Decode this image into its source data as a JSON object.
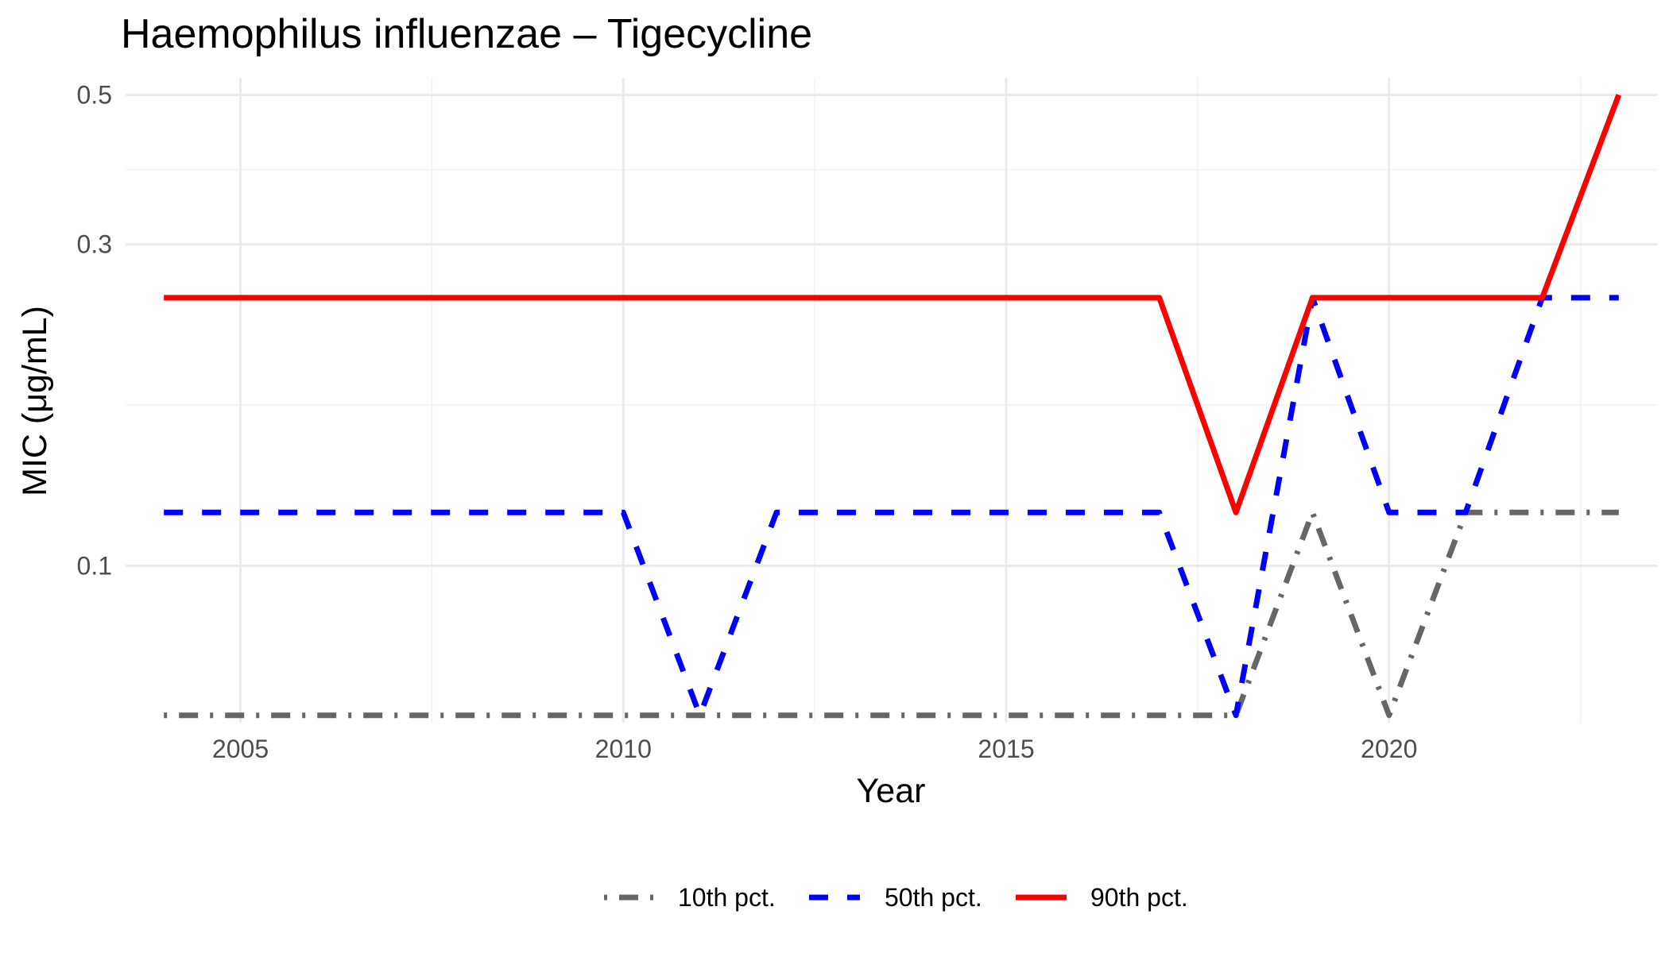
{
  "chart_data": {
    "type": "line",
    "title": "Haemophilus influenzae – Tigecycline",
    "xlabel": "Year",
    "ylabel": "MIC (μg/mL)",
    "y_scale": "log10",
    "xlim": [
      2003.5,
      2023.5
    ],
    "ylim": [
      0.0585,
      0.53
    ],
    "x_ticks": [
      2005,
      2010,
      2015,
      2020
    ],
    "x_tick_labels": [
      "2005",
      "2010",
      "2015",
      "2020"
    ],
    "y_ticks": [
      0.1,
      0.3,
      0.5
    ],
    "y_tick_labels": [
      "0.1",
      "0.3",
      "0.5"
    ],
    "grid": true,
    "legend_position": "bottom",
    "series": [
      {
        "name": "10th pct.",
        "color": "#666666",
        "line_style": "dotdash",
        "x": [
          2004,
          2005,
          2006,
          2007,
          2008,
          2009,
          2010,
          2011,
          2012,
          2013,
          2014,
          2015,
          2016,
          2017,
          2018,
          2019,
          2020,
          2021,
          2022,
          2023
        ],
        "values": [
          0.06,
          0.06,
          0.06,
          0.06,
          0.06,
          0.06,
          0.06,
          0.06,
          0.06,
          0.06,
          0.06,
          0.06,
          0.06,
          0.06,
          0.06,
          0.12,
          0.06,
          0.12,
          0.12,
          0.12
        ]
      },
      {
        "name": "50th pct.",
        "color": "#0000ff",
        "line_style": "dashed",
        "x": [
          2004,
          2005,
          2006,
          2007,
          2008,
          2009,
          2010,
          2011,
          2012,
          2013,
          2014,
          2015,
          2016,
          2017,
          2018,
          2019,
          2020,
          2021,
          2022,
          2023
        ],
        "values": [
          0.12,
          0.12,
          0.12,
          0.12,
          0.12,
          0.12,
          0.12,
          0.06,
          0.12,
          0.12,
          0.12,
          0.12,
          0.12,
          0.12,
          0.06,
          0.25,
          0.12,
          0.12,
          0.25,
          0.25
        ]
      },
      {
        "name": "90th pct.",
        "color": "#ff0000",
        "line_style": "solid",
        "x": [
          2004,
          2005,
          2006,
          2007,
          2008,
          2009,
          2010,
          2011,
          2012,
          2013,
          2014,
          2015,
          2016,
          2017,
          2018,
          2019,
          2020,
          2021,
          2022,
          2023
        ],
        "values": [
          0.25,
          0.25,
          0.25,
          0.25,
          0.25,
          0.25,
          0.25,
          0.25,
          0.25,
          0.25,
          0.25,
          0.25,
          0.25,
          0.25,
          0.12,
          0.25,
          0.25,
          0.25,
          0.25,
          0.5
        ]
      }
    ]
  }
}
